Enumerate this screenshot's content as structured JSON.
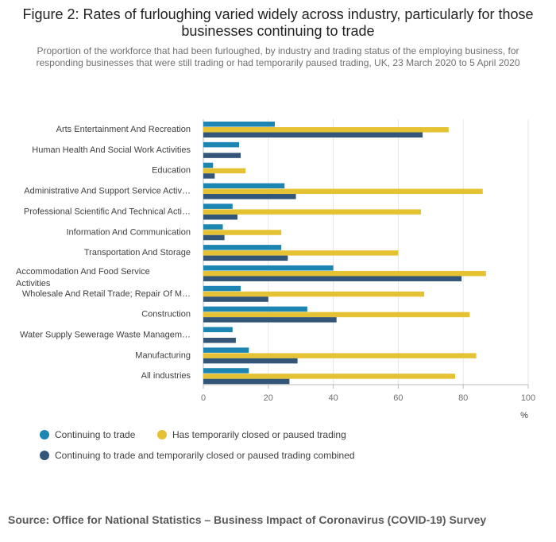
{
  "header": {
    "title": "Figure 2: Rates of furloughing varied widely across industry, particularly for those businesses continuing to trade",
    "subtitle": "Proportion of the workforce that had been furloughed, by industry and trading status of the employing business, for responding businesses that were still trading or had temporarily paused trading, UK, 23 March 2020 to 5 April 2020"
  },
  "legend": {
    "items": [
      {
        "label": "Continuing to trade",
        "color": "#1d85b1"
      },
      {
        "label": "Has temporarily closed or paused trading",
        "color": "#e5c233"
      },
      {
        "label": "Continuing to trade and temporarily closed or paused trading combined",
        "color": "#335577"
      }
    ]
  },
  "source": "Source: Office for National Statistics – Business Impact of Coronavirus (COVID-19) Survey",
  "chart_data": {
    "type": "bar",
    "orientation": "horizontal",
    "categories": [
      "Arts Entertainment And Recreation",
      "Human Health And Social Work Activities",
      "Education",
      "Administrative And Support Service Activ…",
      "Professional Scientific And Technical Acti…",
      "Information And Communication",
      "Transportation And Storage",
      "Accommodation And Food Service Activities",
      "Wholesale And Retail Trade; Repair Of M…",
      "Construction",
      "Water Supply Sewerage Waste Managem…",
      "Manufacturing",
      "All industries"
    ],
    "series": [
      {
        "name": "Continuing to trade",
        "color": "#1d85b1",
        "values": [
          22,
          11,
          3,
          25,
          9,
          6,
          24,
          40,
          11.5,
          32,
          9,
          14,
          14
        ]
      },
      {
        "name": "Has temporarily closed or paused trading",
        "color": "#e5c233",
        "values": [
          75.5,
          null,
          13,
          86,
          67,
          24,
          60,
          87,
          68,
          82,
          null,
          84,
          77.5
        ]
      },
      {
        "name": "Continuing to trade and temporarily closed or paused trading combined",
        "color": "#335577",
        "values": [
          67.5,
          11.5,
          3.5,
          28.5,
          10.5,
          6.5,
          26,
          79.5,
          20,
          41,
          10,
          29,
          26.5
        ]
      }
    ],
    "xlim": [
      0,
      100
    ],
    "xticks": [
      "0",
      "20",
      "40",
      "60",
      "80",
      "100"
    ],
    "xlabel": "%",
    "legend_position": "bottom",
    "grid": true
  }
}
